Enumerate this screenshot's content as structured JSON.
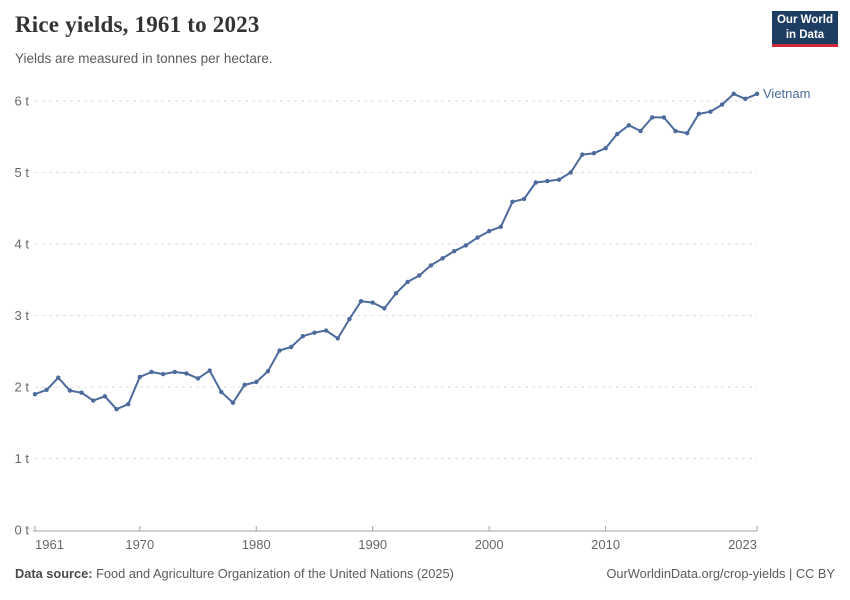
{
  "header": {
    "title": "Rice yields, 1961 to 2023",
    "subtitle": "Yields are measured in tonnes per hectare."
  },
  "logo": {
    "line1": "Our World",
    "line2": "in Data",
    "bg_color": "#1d3d63",
    "bar_color": "#d0293e"
  },
  "chart_data": {
    "type": "line",
    "title": "Rice yields, 1961 to 2023",
    "ylabel": "tonnes per hectare",
    "xlabel": "",
    "xlim": [
      1961,
      2023
    ],
    "ylim": [
      0,
      6
    ],
    "grid": "horizontal-dashed",
    "legend_position": "end-of-line",
    "xticks": [
      1961,
      1970,
      1980,
      1990,
      2000,
      2010,
      2023
    ],
    "yticks": [
      0,
      1,
      2,
      3,
      4,
      5,
      6
    ],
    "ytick_labels": [
      "0 t",
      "1 t",
      "2 t",
      "3 t",
      "4 t",
      "5 t",
      "6 t"
    ],
    "x": [
      1961,
      1962,
      1963,
      1964,
      1965,
      1966,
      1967,
      1968,
      1969,
      1970,
      1971,
      1972,
      1973,
      1974,
      1975,
      1976,
      1977,
      1978,
      1979,
      1980,
      1981,
      1982,
      1983,
      1984,
      1985,
      1986,
      1987,
      1988,
      1989,
      1990,
      1991,
      1992,
      1993,
      1994,
      1995,
      1996,
      1997,
      1998,
      1999,
      2000,
      2001,
      2002,
      2003,
      2004,
      2005,
      2006,
      2007,
      2008,
      2009,
      2010,
      2011,
      2012,
      2013,
      2014,
      2015,
      2016,
      2017,
      2018,
      2019,
      2020,
      2021,
      2022,
      2023
    ],
    "series": [
      {
        "name": "Vietnam",
        "color": "#4c6a9c",
        "values": [
          1.9,
          1.96,
          2.13,
          1.95,
          1.92,
          1.81,
          1.87,
          1.69,
          1.76,
          2.14,
          2.21,
          2.18,
          2.21,
          2.19,
          2.12,
          2.23,
          1.93,
          1.78,
          2.03,
          2.07,
          2.22,
          2.51,
          2.56,
          2.71,
          2.76,
          2.79,
          2.68,
          2.95,
          3.2,
          3.18,
          3.1,
          3.31,
          3.47,
          3.56,
          3.7,
          3.8,
          3.9,
          3.98,
          4.09,
          4.18,
          4.24,
          4.59,
          4.63,
          4.86,
          4.88,
          4.9,
          5.0,
          5.25,
          5.27,
          5.34,
          5.54,
          5.66,
          5.58,
          5.77,
          5.77,
          5.58,
          5.55,
          5.82,
          5.85,
          5.95,
          6.1,
          6.03,
          6.1
        ]
      }
    ],
    "colors": {
      "gridline": "#dcdcdc",
      "axis": "#a1a1a1",
      "tick_label": "#676767"
    }
  },
  "footer": {
    "source_label": "Data source:",
    "source_text": "Food and Agriculture Organization of the United Nations (2025)",
    "credit": "OurWorldinData.org/crop-yields | CC BY"
  }
}
